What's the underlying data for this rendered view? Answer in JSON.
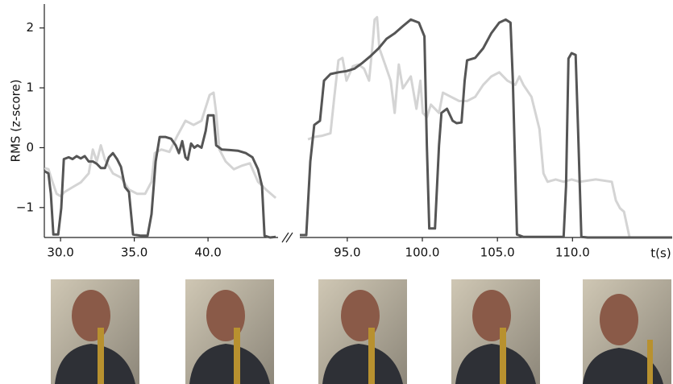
{
  "chart_data": {
    "type": "line",
    "y_label": "RMS (z-score)",
    "x_label": "t(s)",
    "ylim": [
      -1.5,
      2.4
    ],
    "yticks": [
      {
        "value": -1,
        "label": "−1"
      },
      0,
      1,
      2
    ],
    "x_segments": [
      {
        "xlim": [
          28.9,
          44.75
        ],
        "xticks": [
          {
            "value": 30,
            "label": "30.0"
          },
          {
            "value": 35,
            "label": "35.0"
          },
          {
            "value": 40,
            "label": "40.0"
          }
        ]
      },
      {
        "xlim": [
          91.84,
          116.64
        ],
        "xticks": [
          {
            "value": 95,
            "label": "95.0"
          },
          {
            "value": 100,
            "label": "100.0"
          },
          {
            "value": 105,
            "label": "105.0"
          },
          {
            "value": 110,
            "label": "110.0"
          }
        ]
      }
    ],
    "series": [
      {
        "color": "#d4d4d4",
        "x": [
          28.91,
          29.18,
          29.45,
          29.73,
          30.0,
          30.27,
          30.82,
          31.37,
          31.91,
          32.19,
          32.46,
          32.73,
          33.01,
          33.55,
          34.1,
          34.64,
          35.19,
          35.74,
          36.17,
          36.39,
          36.83,
          37.38,
          37.92,
          38.47,
          39.02,
          39.56,
          40.11,
          40.38,
          40.55,
          40.77,
          41.2,
          41.75,
          42.3,
          42.84,
          43.39,
          43.93,
          44.59,
          null,
          92.38,
          92.8,
          93.34,
          93.88,
          94.14,
          94.41,
          94.68,
          94.95,
          95.37,
          95.75,
          96.12,
          96.45,
          96.66,
          96.82,
          96.98,
          97.14,
          97.52,
          97.89,
          98.16,
          98.43,
          98.7,
          99.23,
          99.61,
          99.87,
          100.03,
          100.3,
          100.57,
          101.11,
          101.37,
          101.91,
          102.45,
          102.98,
          103.52,
          104.05,
          104.59,
          105.12,
          105.66,
          106.19,
          106.46,
          106.73,
          107.27,
          107.8,
          108.07,
          108.34,
          108.88,
          109.41,
          109.94,
          110.48,
          111.55,
          112.62,
          112.89,
          113.16,
          113.43,
          113.8,
          116.64
        ],
        "values": [
          -0.34,
          -0.36,
          -0.57,
          -0.77,
          -0.81,
          -0.74,
          -0.66,
          -0.58,
          -0.43,
          -0.03,
          -0.23,
          0.04,
          -0.2,
          -0.43,
          -0.5,
          -0.7,
          -0.77,
          -0.77,
          -0.57,
          -0.09,
          -0.03,
          -0.07,
          0.2,
          0.45,
          0.38,
          0.45,
          0.88,
          0.92,
          0.58,
          -0.03,
          -0.23,
          -0.36,
          -0.3,
          -0.26,
          -0.57,
          -0.7,
          -0.84,
          null,
          0.14,
          0.18,
          0.2,
          0.24,
          0.85,
          1.46,
          1.5,
          1.12,
          1.36,
          1.39,
          1.32,
          1.12,
          1.66,
          2.14,
          2.18,
          1.66,
          1.39,
          1.12,
          0.58,
          1.39,
          0.99,
          1.19,
          0.65,
          1.12,
          0.58,
          0.51,
          0.72,
          0.58,
          0.92,
          0.85,
          0.78,
          0.78,
          0.85,
          1.05,
          1.19,
          1.26,
          1.12,
          1.05,
          1.19,
          1.05,
          0.85,
          0.31,
          -0.43,
          -0.57,
          -0.53,
          -0.57,
          -0.53,
          -0.57,
          -0.53,
          -0.57,
          -0.88,
          -1.01,
          -1.07,
          -1.5,
          -1.5
        ]
      },
      {
        "color": "#555555",
        "x": [
          28.91,
          29.18,
          29.34,
          29.51,
          29.84,
          30.05,
          30.22,
          30.55,
          30.82,
          31.09,
          31.37,
          31.64,
          31.91,
          32.19,
          32.46,
          32.73,
          33.01,
          33.28,
          33.55,
          33.83,
          34.1,
          34.37,
          34.64,
          34.92,
          35.46,
          35.9,
          36.17,
          36.45,
          36.72,
          37.1,
          37.49,
          37.81,
          38.03,
          38.25,
          38.47,
          38.63,
          38.85,
          39.07,
          39.29,
          39.56,
          39.84,
          40.0,
          40.38,
          40.55,
          40.93,
          41.48,
          42.02,
          42.57,
          43.01,
          43.39,
          43.66,
          43.83,
          44.21,
          44.59,
          null,
          91.84,
          92.27,
          92.54,
          92.8,
          93.18,
          93.45,
          93.88,
          94.41,
          94.95,
          95.48,
          96.02,
          96.55,
          97.09,
          97.62,
          98.16,
          98.7,
          99.23,
          99.77,
          100.14,
          100.3,
          100.46,
          100.84,
          101.11,
          101.27,
          101.64,
          102.02,
          102.28,
          102.61,
          102.82,
          102.98,
          103.52,
          104.05,
          104.59,
          105.12,
          105.55,
          105.87,
          106.03,
          106.3,
          106.73,
          109.41,
          109.57,
          109.73,
          109.94,
          110.21,
          110.37,
          110.59,
          111.01,
          116.64
        ],
        "values": [
          -0.39,
          -0.43,
          -0.77,
          -1.45,
          -1.45,
          -1.01,
          -0.19,
          -0.16,
          -0.19,
          -0.14,
          -0.18,
          -0.14,
          -0.23,
          -0.23,
          -0.27,
          -0.34,
          -0.34,
          -0.16,
          -0.09,
          -0.19,
          -0.32,
          -0.66,
          -0.74,
          -1.45,
          -1.47,
          -1.47,
          -1.11,
          -0.23,
          0.18,
          0.18,
          0.15,
          0.04,
          -0.09,
          0.11,
          -0.16,
          -0.2,
          0.07,
          0.0,
          0.04,
          0.0,
          0.28,
          0.54,
          0.54,
          0.04,
          -0.03,
          -0.04,
          -0.05,
          -0.09,
          -0.16,
          -0.36,
          -0.64,
          -1.47,
          -1.5,
          -1.49,
          null,
          -1.46,
          -1.46,
          -0.23,
          0.38,
          0.45,
          1.12,
          1.23,
          1.26,
          1.28,
          1.32,
          1.42,
          1.53,
          1.66,
          1.82,
          1.91,
          2.03,
          2.14,
          2.09,
          1.86,
          0.04,
          -1.35,
          -1.35,
          0.04,
          0.58,
          0.65,
          0.45,
          0.41,
          0.42,
          1.12,
          1.46,
          1.5,
          1.66,
          1.91,
          2.09,
          2.14,
          2.09,
          1.12,
          -1.45,
          -1.49,
          -1.49,
          -0.64,
          1.49,
          1.58,
          1.55,
          0.31,
          -1.49,
          -1.5,
          -1.5
        ]
      }
    ]
  }
}
